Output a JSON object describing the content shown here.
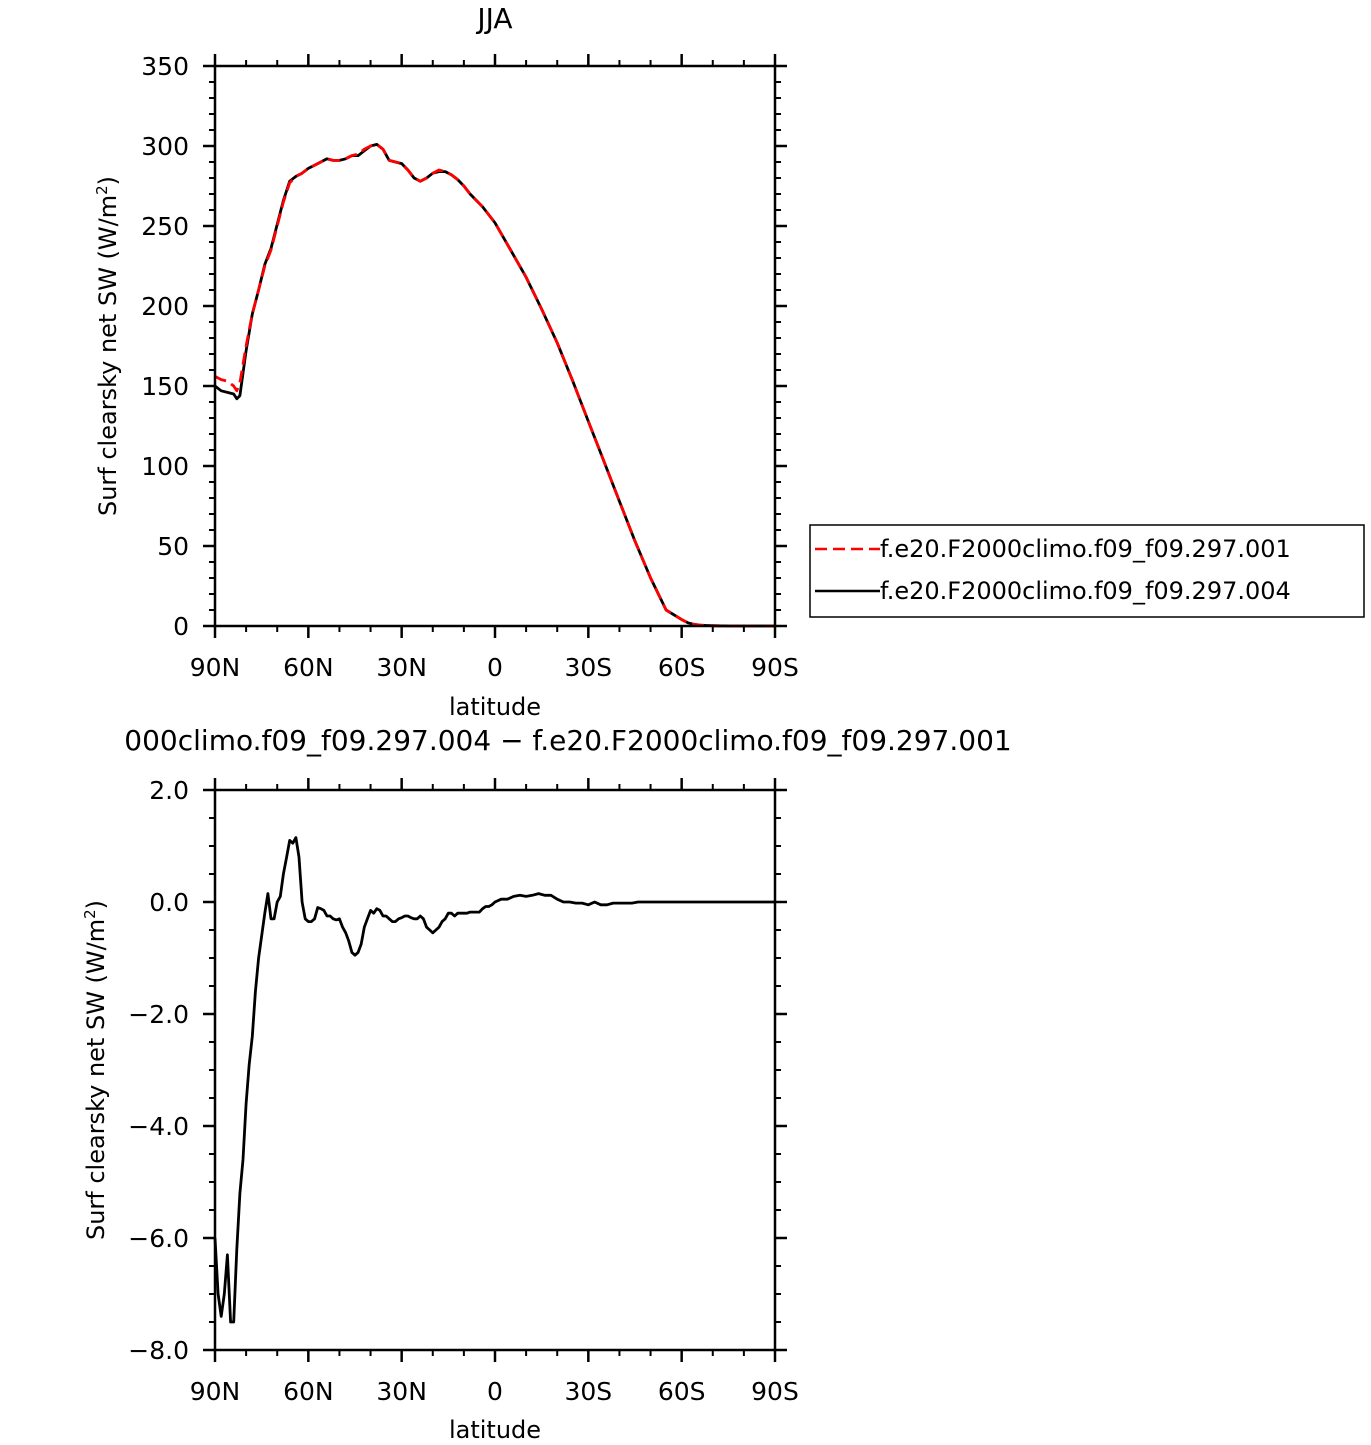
{
  "chart_data": [
    {
      "type": "line",
      "title": "JJA",
      "xlabel": "latitude",
      "ylabel": "Surf clearsky net SW (W/m²)",
      "ylabel_main": "Surf clearsky net SW (W/m",
      "ylabel_sup": "2",
      "ylabel_close": ")",
      "xlim": [
        90,
        -90
      ],
      "ylim": [
        0,
        350
      ],
      "x_ticks": [
        90,
        60,
        30,
        0,
        -30,
        -60,
        -90
      ],
      "x_tick_labels": [
        "90N",
        "60N",
        "30N",
        "0",
        "30S",
        "60S",
        "90S"
      ],
      "y_ticks": [
        0,
        50,
        100,
        150,
        200,
        250,
        300,
        350
      ],
      "y_tick_labels": [
        "0",
        "50",
        "100",
        "150",
        "200",
        "250",
        "300",
        "350"
      ],
      "legend_position": "right",
      "series": [
        {
          "name": "f.e20.F2000climo.f09_f09.297.001",
          "color": "#ff0000",
          "dash": "dashed",
          "x": [
            90,
            88,
            86,
            84,
            83,
            82,
            80,
            78,
            76,
            74,
            72,
            70,
            68,
            66,
            64,
            62,
            60,
            58,
            56,
            54,
            52,
            50,
            48,
            46,
            44,
            42,
            40,
            38,
            36,
            34,
            32,
            30,
            28,
            26,
            24,
            22,
            20,
            18,
            16,
            14,
            12,
            10,
            8,
            6,
            4,
            2,
            0,
            -5,
            -10,
            -15,
            -20,
            -25,
            -30,
            -35,
            -40,
            -45,
            -50,
            -55,
            -60,
            -62,
            -64,
            -66,
            -68,
            -70,
            -75,
            -80,
            -85,
            -90
          ],
          "y": [
            156,
            154,
            153,
            150,
            147,
            152,
            175,
            195,
            210,
            225,
            235,
            250,
            265,
            277,
            281,
            283,
            286,
            288,
            290,
            292,
            291,
            291,
            292,
            294,
            295,
            298,
            300,
            301,
            298,
            291,
            290,
            289,
            285,
            280,
            278,
            280,
            283,
            285,
            284,
            282,
            279,
            275,
            270,
            266,
            262,
            257,
            252,
            235,
            218,
            198,
            177,
            153,
            128,
            103,
            78,
            53,
            30,
            10,
            4,
            2,
            1,
            0.5,
            0.3,
            0.2,
            0,
            0,
            0,
            0
          ]
        },
        {
          "name": "f.e20.F2000climo.f09_f09.297.004",
          "color": "#000000",
          "dash": "solid",
          "x": [
            90,
            88,
            86,
            84,
            83,
            82,
            80,
            78,
            76,
            74,
            72,
            70,
            68,
            66,
            64,
            62,
            60,
            58,
            56,
            54,
            52,
            50,
            48,
            46,
            44,
            42,
            40,
            38,
            36,
            34,
            32,
            30,
            28,
            26,
            24,
            22,
            20,
            18,
            16,
            14,
            12,
            10,
            8,
            6,
            4,
            2,
            0,
            -5,
            -10,
            -15,
            -20,
            -25,
            -30,
            -35,
            -40,
            -45,
            -50,
            -55,
            -60,
            -62,
            -64,
            -66,
            -68,
            -70,
            -75,
            -80,
            -85,
            -90
          ],
          "y": [
            150,
            147,
            146,
            145,
            142,
            144,
            172,
            195,
            210,
            226,
            236,
            251,
            266,
            278,
            281,
            283,
            286,
            288,
            290,
            292,
            291,
            291,
            292,
            294,
            294,
            297,
            300,
            301,
            298,
            291,
            290,
            289,
            285,
            280,
            278,
            280,
            283,
            284,
            284,
            282,
            279,
            275,
            270,
            266,
            262,
            257,
            252,
            235,
            218,
            198,
            177,
            153,
            128,
            103,
            78,
            53,
            30,
            10,
            4,
            2,
            1,
            0.5,
            0.3,
            0.2,
            0,
            0,
            0,
            0
          ]
        }
      ]
    },
    {
      "type": "line",
      "title": "000climo.f09_f09.297.004 − f.e20.F2000climo.f09_f09.297.001",
      "xlabel": "latitude",
      "ylabel": "Surf clearsky net SW (W/m²)",
      "ylabel_main": "Surf clearsky net SW (W/m",
      "ylabel_sup": "2",
      "ylabel_close": ")",
      "xlim": [
        90,
        -90
      ],
      "ylim": [
        -8,
        2
      ],
      "x_ticks": [
        90,
        60,
        30,
        0,
        -30,
        -60,
        -90
      ],
      "x_tick_labels": [
        "90N",
        "60N",
        "30N",
        "0",
        "30S",
        "60S",
        "90S"
      ],
      "y_ticks": [
        2,
        0,
        -2,
        -4,
        -6,
        -8
      ],
      "y_tick_labels": [
        "2.0",
        "0.0",
        "−2.0",
        "−4.0",
        "−6.0",
        "−8.0"
      ],
      "series": [
        {
          "color": "#000000",
          "dash": "solid",
          "x": [
            90,
            89,
            88,
            87,
            86,
            85,
            84,
            83,
            82,
            81,
            80,
            79,
            78,
            77,
            76,
            75,
            74,
            73,
            72,
            71,
            70,
            69,
            68,
            67,
            66,
            65,
            64,
            63,
            62,
            61,
            60,
            59,
            58,
            57,
            56,
            55,
            54,
            53,
            52,
            51,
            50,
            49,
            48,
            47,
            46,
            45,
            44,
            43,
            42,
            41,
            40,
            39,
            38,
            37,
            36,
            35,
            34,
            33,
            32,
            31,
            30,
            29,
            28,
            27,
            26,
            25,
            24,
            23,
            22,
            21,
            20,
            19,
            18,
            17,
            16,
            15,
            14,
            13,
            12,
            11,
            10,
            9,
            8,
            7,
            6,
            5,
            4,
            3,
            2,
            1,
            0,
            -2,
            -4,
            -6,
            -8,
            -10,
            -12,
            -14,
            -16,
            -18,
            -20,
            -22,
            -24,
            -26,
            -28,
            -30,
            -32,
            -34,
            -36,
            -38,
            -40,
            -42,
            -44,
            -46,
            -48,
            -50,
            -52,
            -54,
            -56,
            -58,
            -60,
            -62,
            -64,
            -66,
            -68,
            -70,
            -75,
            -80,
            -85,
            -90
          ],
          "y": [
            -6.0,
            -7.0,
            -7.4,
            -7.0,
            -6.3,
            -7.5,
            -7.5,
            -6.2,
            -5.2,
            -4.6,
            -3.6,
            -2.9,
            -2.4,
            -1.6,
            -1.0,
            -0.6,
            -0.2,
            0.15,
            -0.3,
            -0.3,
            0.0,
            0.1,
            0.5,
            0.8,
            1.1,
            1.05,
            1.15,
            0.8,
            0.0,
            -0.3,
            -0.35,
            -0.35,
            -0.3,
            -0.1,
            -0.12,
            -0.15,
            -0.25,
            -0.25,
            -0.3,
            -0.32,
            -0.3,
            -0.45,
            -0.55,
            -0.7,
            -0.9,
            -0.95,
            -0.9,
            -0.75,
            -0.45,
            -0.3,
            -0.15,
            -0.2,
            -0.12,
            -0.15,
            -0.25,
            -0.25,
            -0.3,
            -0.35,
            -0.35,
            -0.3,
            -0.28,
            -0.25,
            -0.25,
            -0.28,
            -0.3,
            -0.3,
            -0.25,
            -0.3,
            -0.45,
            -0.5,
            -0.55,
            -0.5,
            -0.45,
            -0.35,
            -0.3,
            -0.2,
            -0.2,
            -0.25,
            -0.2,
            -0.2,
            -0.2,
            -0.2,
            -0.18,
            -0.18,
            -0.18,
            -0.18,
            -0.12,
            -0.08,
            -0.08,
            -0.05,
            0.0,
            0.05,
            0.05,
            0.1,
            0.12,
            0.1,
            0.12,
            0.15,
            0.12,
            0.12,
            0.05,
            0.0,
            0.0,
            -0.02,
            -0.02,
            -0.05,
            0.0,
            -0.05,
            -0.05,
            -0.02,
            -0.02,
            -0.02,
            -0.02,
            0.0,
            0.0,
            0.0,
            0.0,
            0.0,
            0.0,
            0.0,
            0.0,
            0.0,
            0.0,
            0.0,
            0.0,
            0.0,
            0.0,
            0.0,
            0.0,
            0.0
          ]
        }
      ]
    }
  ]
}
